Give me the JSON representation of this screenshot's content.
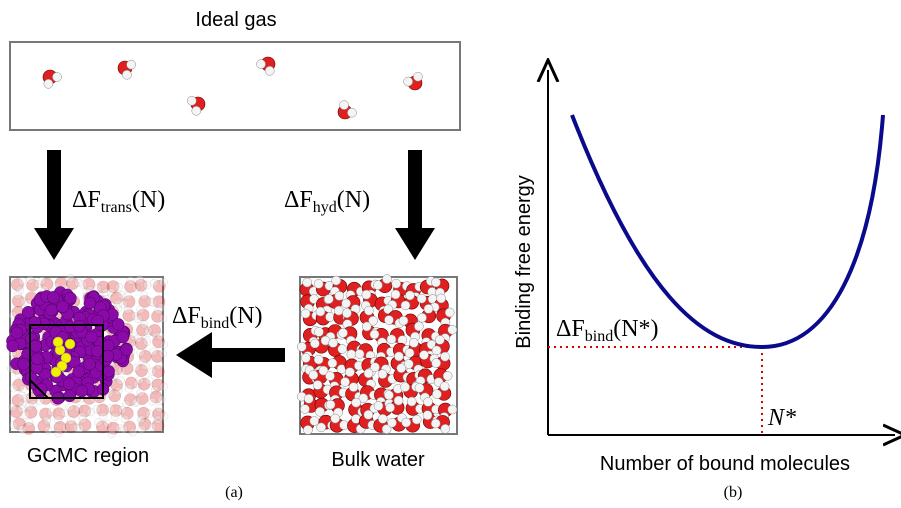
{
  "panel_a": {
    "ideal_gas_label": "Ideal gas",
    "trans_label": {
      "symbol": "ΔF",
      "subscript": "trans",
      "argument": "(N)"
    },
    "hyd_label": {
      "symbol": "ΔF",
      "subscript": "hyd",
      "argument": "(N)"
    },
    "bind_label": {
      "symbol": "ΔF",
      "subscript": "bind",
      "argument": "(N)"
    },
    "gcmc_label": "GCMC region",
    "bulk_label": "Bulk water",
    "caption": "(a)"
  },
  "panel_b": {
    "y_axis_label": "Binding free energy",
    "x_axis_label": "Number of bound molecules",
    "min_label": {
      "symbol": "ΔF",
      "subscript": "bind",
      "argument": "(N*)"
    },
    "n_star_label": "N*",
    "caption": "(b)"
  }
}
